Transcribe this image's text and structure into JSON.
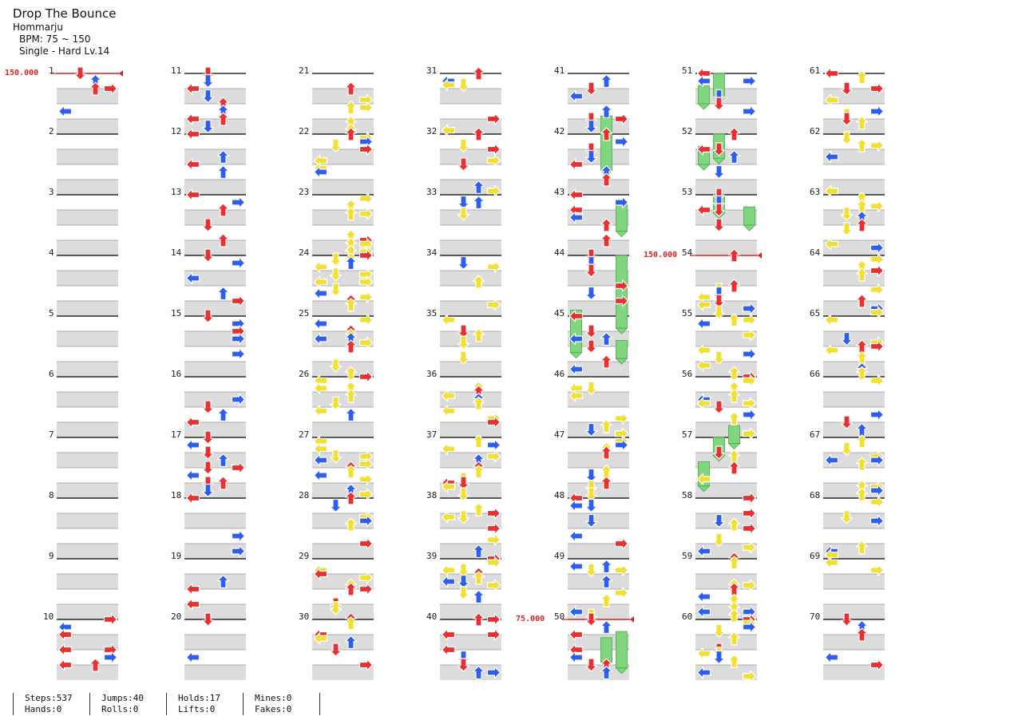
{
  "song": {
    "title": "Drop The Bounce",
    "artist": "Hommarju",
    "bpm": "BPM: 75 ~ 150",
    "difficulty": "Single - Hard  Lv.14"
  },
  "bpm_changes": [
    {
      "measure": 1,
      "label": "150.000"
    },
    {
      "measure": 50,
      "label": "75.000"
    },
    {
      "measure": 54,
      "label": "150.000"
    }
  ],
  "measures_per_column": 10,
  "measure_count": 70,
  "stats": [
    {
      "top": "Steps:537",
      "bottom": "Hands:0"
    },
    {
      "top": "Jumps:40",
      "bottom": "Rolls:0"
    },
    {
      "top": "Holds:17",
      "bottom": "Lifts:0"
    },
    {
      "top": "Mines:0",
      "bottom": "Fakes:0"
    }
  ],
  "colors": {
    "quarter": "#e83030",
    "eighth": "#2e5ef0",
    "sixteenth": "#f2e030",
    "hold": "#7fd67f",
    "stripe": "#dcdcdc",
    "bpm_line": "#e02020"
  },
  "icons": [
    "arrow-left-icon",
    "arrow-down-icon",
    "arrow-up-icon",
    "arrow-right-icon",
    "hold-bar-icon"
  ]
}
